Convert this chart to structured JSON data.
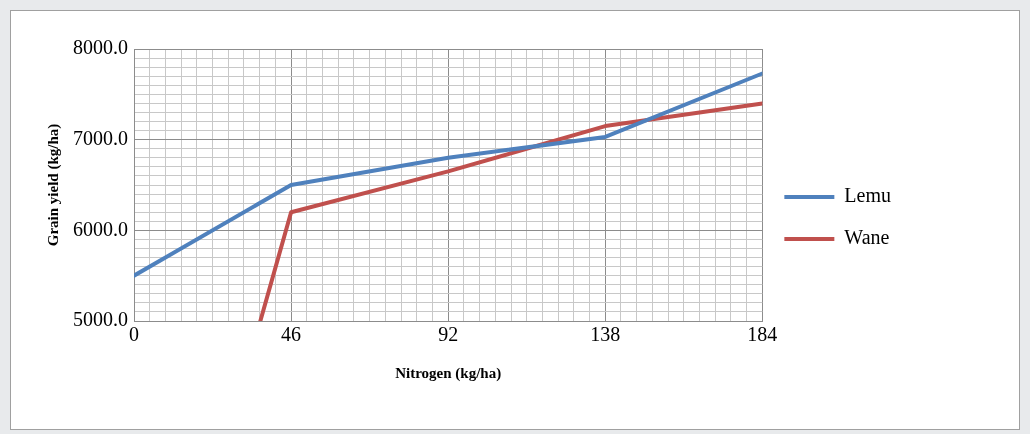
{
  "chart_data": {
    "type": "line",
    "xlabel": "Nitrogen (kg/ha)",
    "ylabel": "Grain yield (kg/ha)",
    "xlim": [
      0,
      184
    ],
    "ylim": [
      5000,
      8000
    ],
    "xticks": [
      0,
      {
        "value": 4.6,
        "label": null
      },
      {
        "value": 9.2,
        "label": null
      },
      {
        "value": 13.8,
        "label": null
      },
      {
        "value": 18.4,
        "label": null
      },
      {
        "value": 23,
        "label": null
      },
      {
        "value": 27.6,
        "label": null
      },
      {
        "value": 32.2,
        "label": null
      },
      {
        "value": 36.8,
        "label": null
      },
      {
        "value": 41.4,
        "label": null
      },
      46,
      {
        "value": 50.6,
        "label": null
      },
      {
        "value": 55.2,
        "label": null
      },
      {
        "value": 59.8,
        "label": null
      },
      {
        "value": 64.4,
        "label": null
      },
      {
        "value": 69,
        "label": null
      },
      {
        "value": 73.6,
        "label": null
      },
      {
        "value": 78.2,
        "label": null
      },
      {
        "value": 82.8,
        "label": null
      },
      {
        "value": 87.4,
        "label": null
      },
      92,
      {
        "value": 96.6,
        "label": null
      },
      {
        "value": 101.2,
        "label": null
      },
      {
        "value": 105.8,
        "label": null
      },
      {
        "value": 110.4,
        "label": null
      },
      {
        "value": 115,
        "label": null
      },
      {
        "value": 119.6,
        "label": null
      },
      {
        "value": 124.2,
        "label": null
      },
      {
        "value": 128.8,
        "label": null
      },
      {
        "value": 133.4,
        "label": null
      },
      138,
      {
        "value": 142.6,
        "label": null
      },
      {
        "value": 147.2,
        "label": null
      },
      {
        "value": 151.8,
        "label": null
      },
      {
        "value": 156.4,
        "label": null
      },
      {
        "value": 161,
        "label": null
      },
      {
        "value": 165.6,
        "label": null
      },
      {
        "value": 170.2,
        "label": null
      },
      {
        "value": 174.8,
        "label": null
      },
      {
        "value": 179.4,
        "label": null
      },
      184
    ],
    "yticks": [
      {
        "value": 5000,
        "label": "5000.0"
      },
      {
        "value": 5100,
        "label": null
      },
      {
        "value": 5200,
        "label": null
      },
      {
        "value": 5300,
        "label": null
      },
      {
        "value": 5400,
        "label": null
      },
      {
        "value": 5500,
        "label": null
      },
      {
        "value": 5600,
        "label": null
      },
      {
        "value": 5700,
        "label": null
      },
      {
        "value": 5800,
        "label": null
      },
      {
        "value": 5900,
        "label": null
      },
      {
        "value": 6000,
        "label": "6000.0"
      },
      {
        "value": 6100,
        "label": null
      },
      {
        "value": 6200,
        "label": null
      },
      {
        "value": 6300,
        "label": null
      },
      {
        "value": 6400,
        "label": null
      },
      {
        "value": 6500,
        "label": null
      },
      {
        "value": 6600,
        "label": null
      },
      {
        "value": 6700,
        "label": null
      },
      {
        "value": 6800,
        "label": null
      },
      {
        "value": 6900,
        "label": null
      },
      {
        "value": 7000,
        "label": "7000.0"
      },
      {
        "value": 7100,
        "label": null
      },
      {
        "value": 7200,
        "label": null
      },
      {
        "value": 7300,
        "label": null
      },
      {
        "value": 7400,
        "label": null
      },
      {
        "value": 7500,
        "label": null
      },
      {
        "value": 7600,
        "label": null
      },
      {
        "value": 7700,
        "label": null
      },
      {
        "value": 7800,
        "label": null
      },
      {
        "value": 7900,
        "label": null
      },
      {
        "value": 8000,
        "label": "8000.0"
      }
    ],
    "grid": true,
    "legend": "right",
    "marker": "none",
    "line_style": "solid",
    "series": [
      {
        "name": "Lemu",
        "color": "#4f81bd",
        "x": [
          0,
          46,
          92,
          138,
          184
        ],
        "values": [
          5500,
          6500,
          6800,
          7030,
          7730
        ]
      },
      {
        "name": "Wane",
        "color": "#c0504d",
        "x": [
          37,
          46,
          92,
          138,
          184
        ],
        "values": [
          5000,
          6200,
          6650,
          7150,
          7400
        ]
      }
    ]
  }
}
